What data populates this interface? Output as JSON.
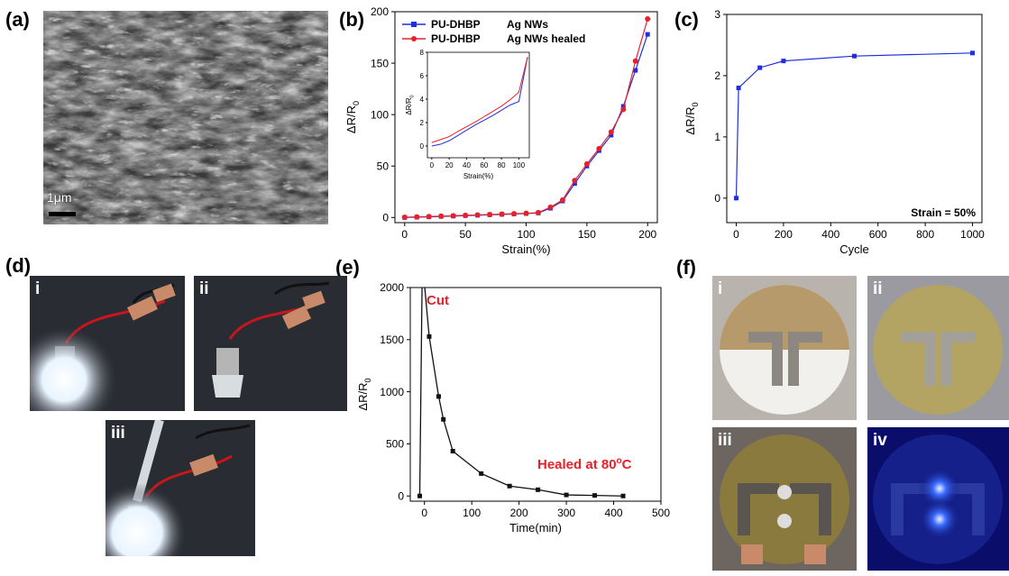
{
  "panels": {
    "a": "(a)",
    "b": "(b)",
    "c": "(c)",
    "d": "(d)",
    "e": "(e)",
    "f": "(f)"
  },
  "sem": {
    "scale_bar": "1μm"
  },
  "photos_d": {
    "i": "i",
    "ii": "ii",
    "iii": "iii"
  },
  "photos_f": {
    "i": "i",
    "ii": "ii",
    "iii": "iii",
    "iv": "iv"
  },
  "colors": {
    "blue": "#1f2fe0",
    "red": "#e8202a",
    "black": "#111111",
    "annot_red": "#e8202a"
  },
  "chart_data": [
    {
      "id": "b",
      "type": "line",
      "xlabel": "Strain(%)",
      "ylabel": "ΔR/R0",
      "xlim": [
        -8,
        208
      ],
      "ylim": [
        -5,
        200
      ],
      "xticks": [
        0,
        50,
        100,
        150,
        200
      ],
      "yticks": [
        0,
        50,
        100,
        150,
        200
      ],
      "legend": [
        {
          "name": "PU-DHBP",
          "name2": "Ag NWs"
        },
        {
          "name": "PU-DHBP",
          "name2": "Ag NWs healed"
        }
      ],
      "series": [
        {
          "name": "PU-DHBP Ag NWs",
          "color": "#1f2fe0",
          "marker": "square",
          "x": [
            0,
            10,
            20,
            30,
            40,
            50,
            60,
            70,
            80,
            90,
            100,
            110,
            120,
            130,
            140,
            150,
            160,
            170,
            180,
            190,
            200
          ],
          "y": [
            0,
            0.3,
            0.6,
            1,
            1.4,
            1.8,
            2.2,
            2.6,
            3,
            3.4,
            3.8,
            4.4,
            9,
            16,
            33,
            50,
            65,
            80,
            108,
            143,
            178
          ]
        },
        {
          "name": "PU-DHBP Ag NWs healed",
          "color": "#e8202a",
          "marker": "circle",
          "x": [
            0,
            10,
            20,
            30,
            40,
            50,
            60,
            70,
            80,
            90,
            100,
            110,
            120,
            130,
            140,
            150,
            160,
            170,
            180,
            190,
            200
          ],
          "y": [
            0.3,
            0.6,
            0.9,
            1.3,
            1.7,
            2.1,
            2.5,
            2.9,
            3.3,
            3.7,
            4.1,
            4.7,
            10,
            17,
            36,
            52,
            67,
            83,
            105,
            152,
            193
          ]
        }
      ],
      "inset": {
        "xlabel": "Strain(%)",
        "ylabel": "ΔR/R0",
        "xlim": [
          -5,
          112
        ],
        "ylim": [
          -1,
          8
        ],
        "xticks": [
          0,
          20,
          40,
          60,
          80,
          100
        ],
        "yticks": [
          0,
          2,
          4,
          6,
          8
        ],
        "series": [
          {
            "color": "#1f2fe0",
            "x": [
              0,
              10,
              20,
              30,
              40,
              50,
              60,
              70,
              80,
              90,
              100,
              110
            ],
            "y": [
              0,
              0.15,
              0.45,
              0.9,
              1.35,
              1.8,
              2.2,
              2.6,
              3.05,
              3.5,
              3.8,
              7.6
            ]
          },
          {
            "color": "#e8202a",
            "x": [
              0,
              10,
              20,
              30,
              40,
              50,
              60,
              70,
              80,
              90,
              100,
              110
            ],
            "y": [
              0.3,
              0.55,
              0.8,
              1.25,
              1.65,
              2.05,
              2.5,
              2.95,
              3.4,
              3.95,
              4.6,
              7.6
            ]
          }
        ]
      }
    },
    {
      "id": "c",
      "type": "line",
      "xlabel": "Cycle",
      "ylabel": "ΔR/R0",
      "xlim": [
        -40,
        1040
      ],
      "ylim": [
        -0.4,
        3
      ],
      "xticks": [
        0,
        200,
        400,
        600,
        800,
        1000
      ],
      "yticks": [
        0,
        1,
        2,
        3
      ],
      "annotation": "Strain = 50%",
      "series": [
        {
          "color": "#1f2fe0",
          "marker": "square",
          "x": [
            0,
            10,
            100,
            200,
            500,
            1000
          ],
          "y": [
            0,
            1.8,
            2.13,
            2.24,
            2.32,
            2.37
          ]
        }
      ]
    },
    {
      "id": "e",
      "type": "line",
      "xlabel": "Time(min)",
      "ylabel": "ΔR/R0",
      "xlim": [
        -30,
        500
      ],
      "ylim": [
        -50,
        2000
      ],
      "xticks": [
        0,
        100,
        200,
        300,
        400,
        500
      ],
      "yticks": [
        0,
        500,
        1000,
        1500,
        2000
      ],
      "annotation_cut": "Cut",
      "annotation_healed": "Healed at 80",
      "annotation_healed_sup": "o",
      "annotation_healed_unit": "C",
      "series": [
        {
          "color": "#111111",
          "marker": "square",
          "x": [
            -10,
            10,
            30,
            40,
            60,
            120,
            180,
            240,
            300,
            360,
            420
          ],
          "y": [
            0,
            1530,
            955,
            735,
            430,
            215,
            95,
            60,
            10,
            5,
            0
          ]
        }
      ]
    }
  ]
}
